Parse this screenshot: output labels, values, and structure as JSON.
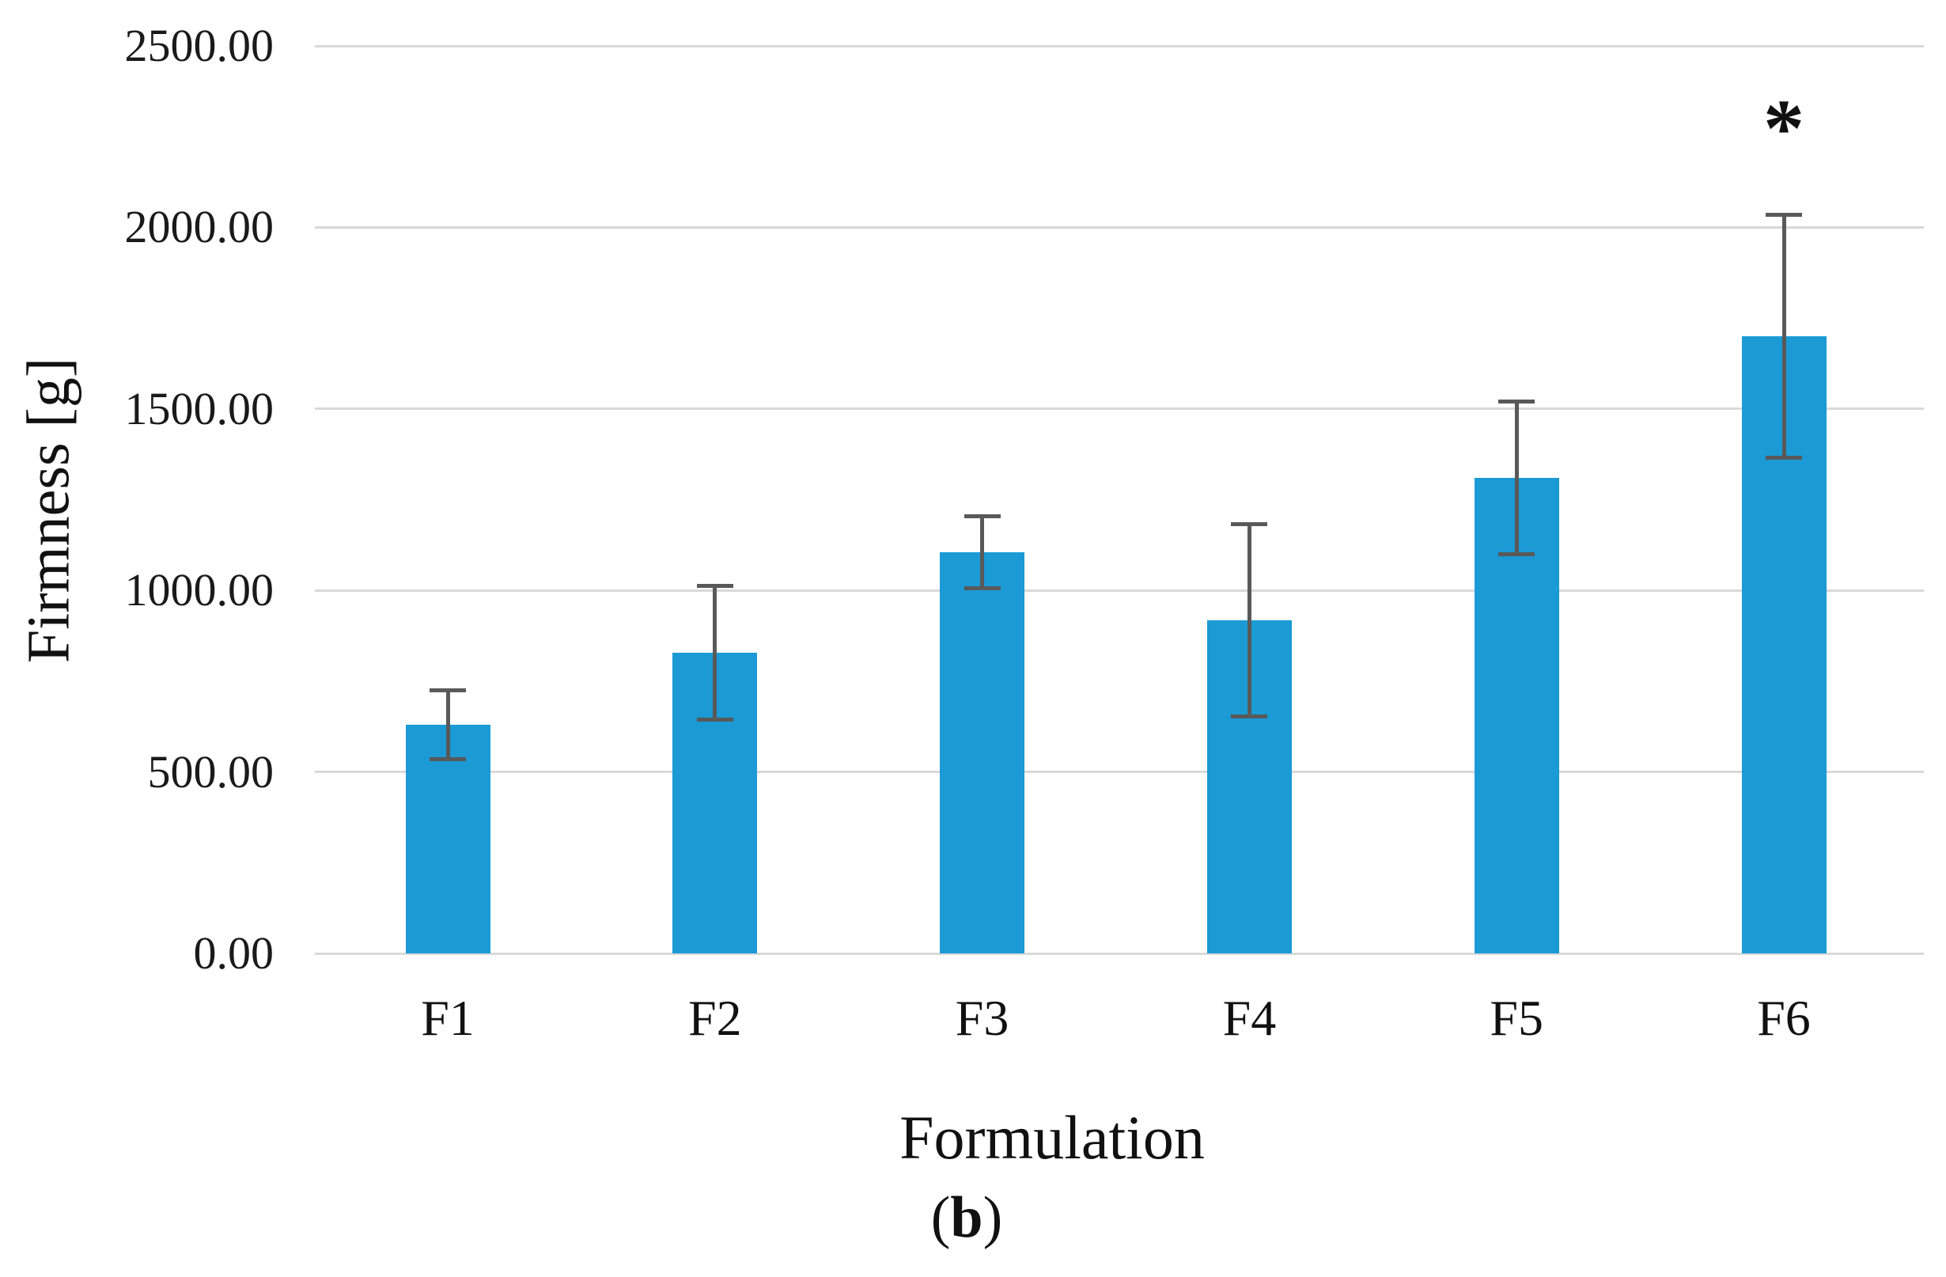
{
  "figure": {
    "caption_open": "(",
    "caption_letter": "b",
    "caption_close": ")"
  },
  "chart_data": {
    "type": "bar",
    "title": "",
    "xlabel": "Formulation",
    "ylabel": "Firmness [g]",
    "categories": [
      "F1",
      "F2",
      "F3",
      "F4",
      "F5",
      "F6"
    ],
    "values": [
      630,
      828,
      1105,
      918,
      1310,
      1700
    ],
    "errors": [
      95,
      185,
      100,
      265,
      210,
      335
    ],
    "significance": [
      "",
      "",
      "",
      "",
      "",
      "*"
    ],
    "ylim": [
      0,
      2500
    ],
    "ytick_step": 500,
    "ytick_labels": [
      "0.00",
      "500.00",
      "1000.00",
      "1500.00",
      "2000.00",
      "2500.00"
    ],
    "grid": true,
    "legend": "none",
    "bar_color": "#1b9ad6",
    "error_color": "#595959",
    "gridline_color": "#d9d9d9"
  }
}
